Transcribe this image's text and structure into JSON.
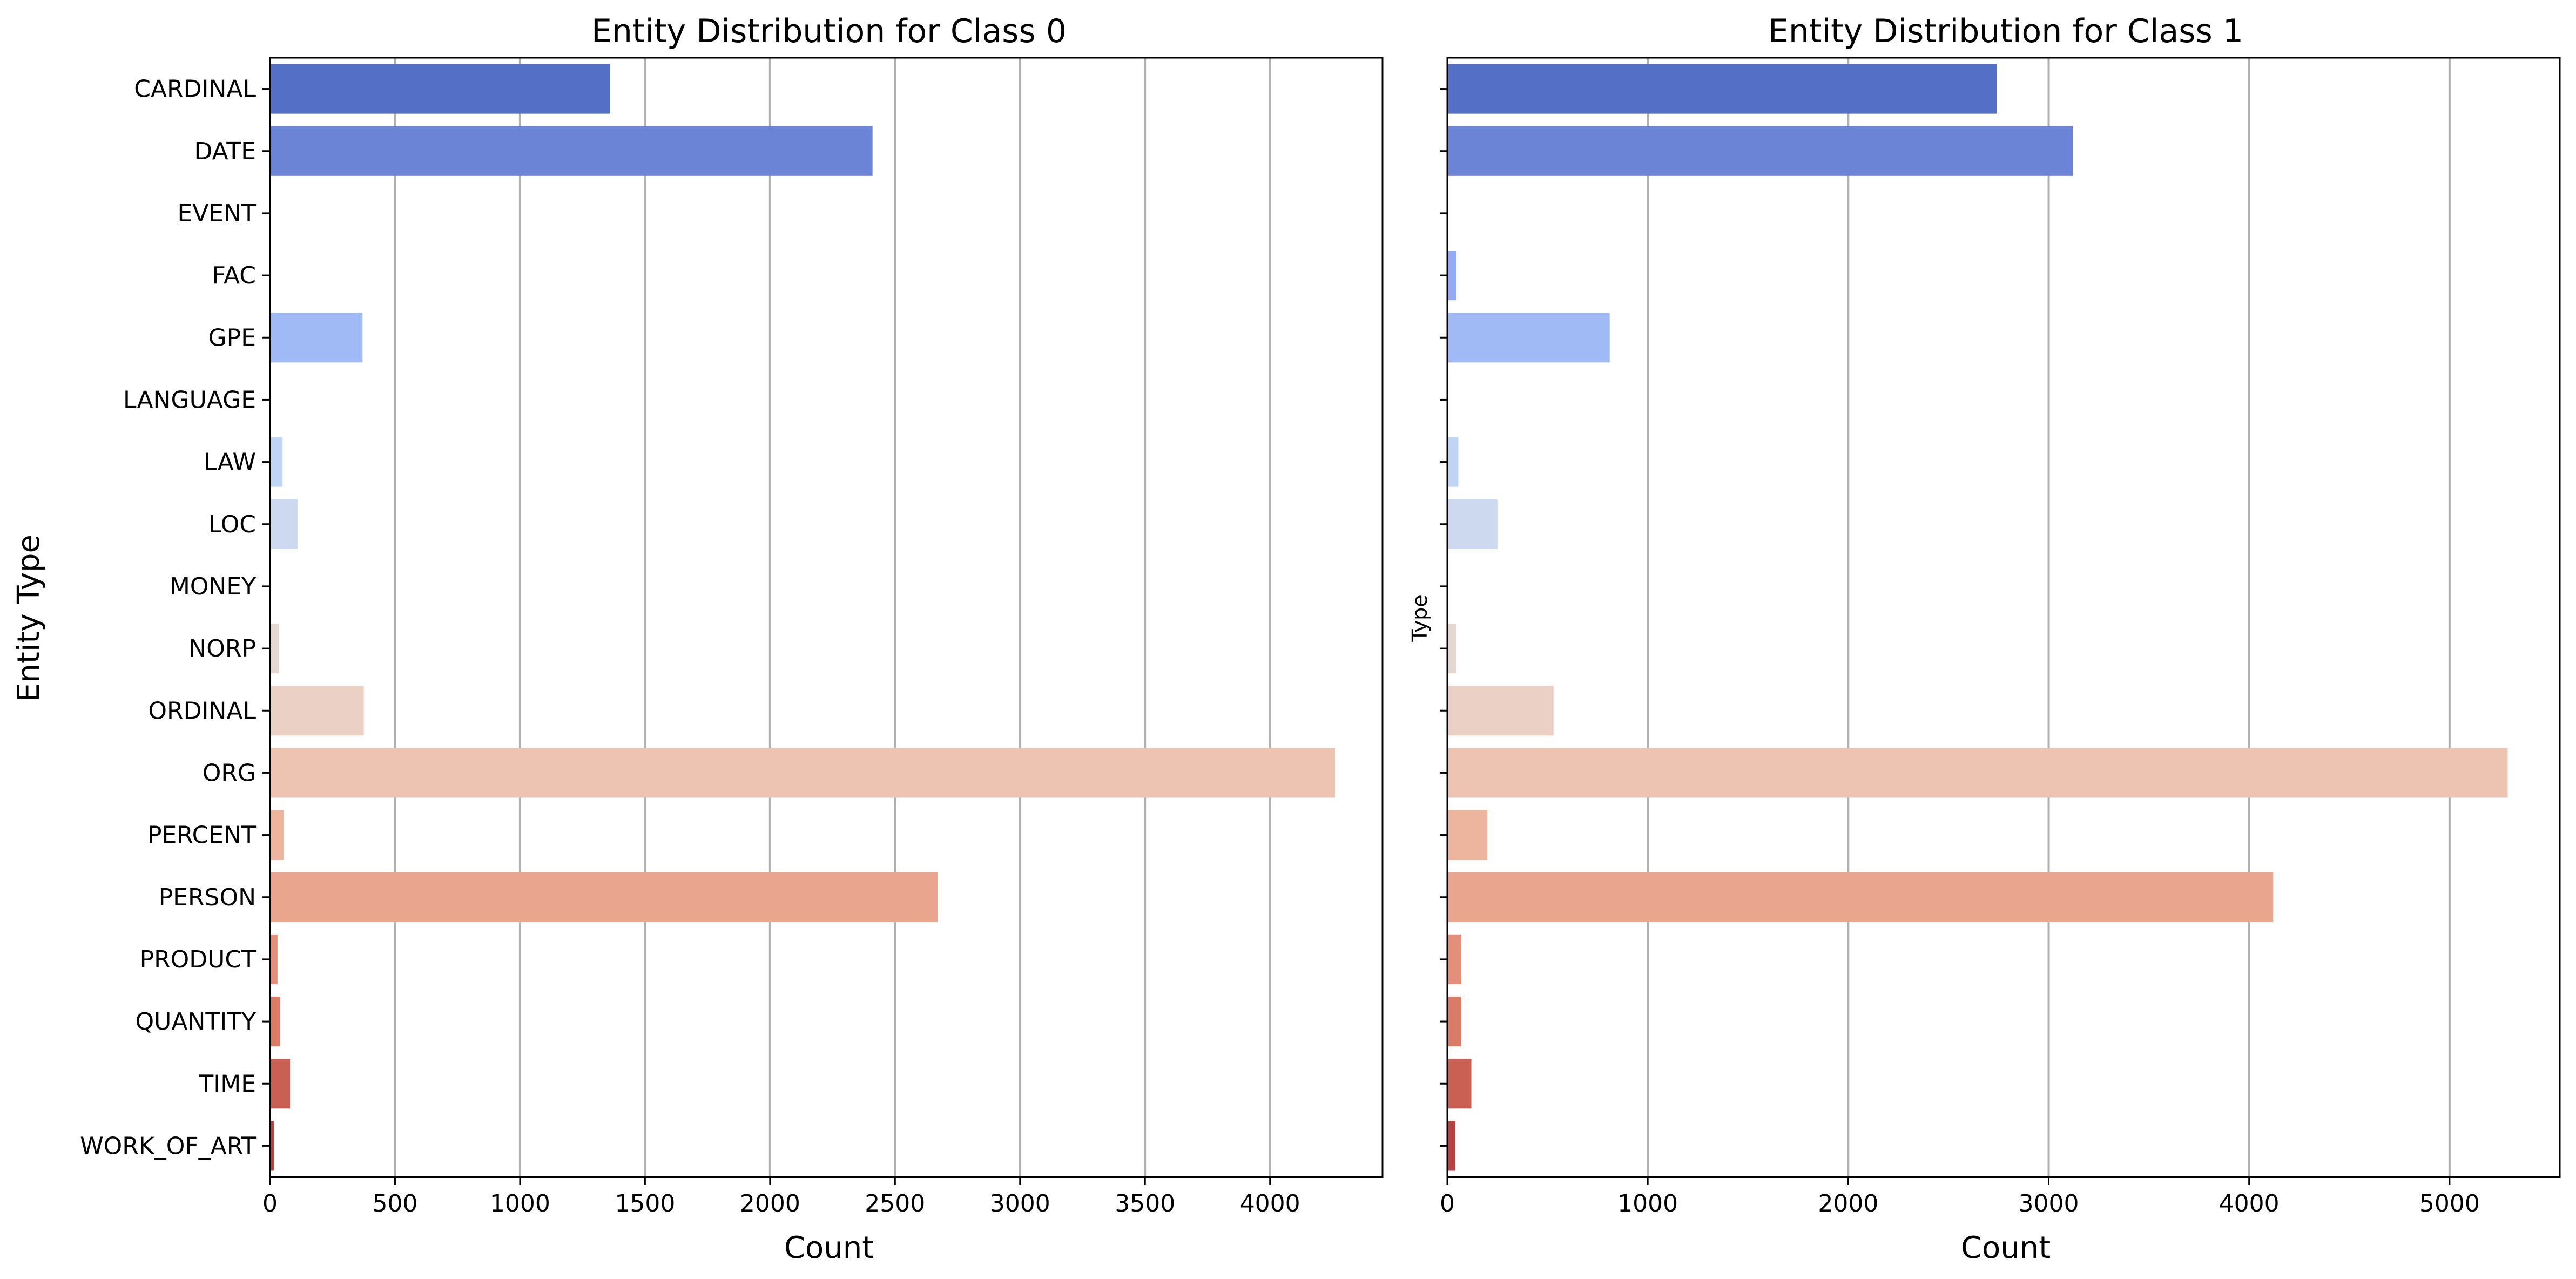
{
  "chart_data": [
    {
      "type": "bar",
      "orientation": "horizontal",
      "title": "Entity Distribution for Class 0",
      "xlabel": "Count",
      "ylabel": "Entity Type",
      "categories": [
        "CARDINAL",
        "DATE",
        "EVENT",
        "FAC",
        "GPE",
        "LANGUAGE",
        "LAW",
        "LOC",
        "MONEY",
        "NORP",
        "ORDINAL",
        "ORG",
        "PERCENT",
        "PERSON",
        "PRODUCT",
        "QUANTITY",
        "TIME",
        "WORK_OF_ART"
      ],
      "values": [
        1360,
        2410,
        0,
        0,
        370,
        0,
        50,
        110,
        0,
        35,
        375,
        4260,
        55,
        2670,
        30,
        40,
        80,
        15
      ],
      "xlim": [
        0,
        4450
      ],
      "xticks": [
        0,
        500,
        1000,
        1500,
        2000,
        2500,
        3000,
        3500,
        4000
      ],
      "xtick_labels": [
        "0",
        "500",
        "1000",
        "1500",
        "2000",
        "2500",
        "3000",
        "3500",
        "4000"
      ],
      "grid": "vertical"
    },
    {
      "type": "bar",
      "orientation": "horizontal",
      "title": "Entity Distribution for Class 1",
      "xlabel": "Count",
      "ylabel": "Type",
      "categories": [
        "CARDINAL",
        "DATE",
        "EVENT",
        "FAC",
        "GPE",
        "LANGUAGE",
        "LAW",
        "LOC",
        "MONEY",
        "NORP",
        "ORDINAL",
        "ORG",
        "PERCENT",
        "PERSON",
        "PRODUCT",
        "QUANTITY",
        "TIME",
        "WORK_OF_ART"
      ],
      "values": [
        2740,
        3120,
        0,
        45,
        810,
        0,
        55,
        250,
        0,
        45,
        530,
        5290,
        200,
        4120,
        70,
        70,
        120,
        40
      ],
      "xlim": [
        0,
        5550
      ],
      "xticks": [
        0,
        1000,
        2000,
        3000,
        4000,
        5000
      ],
      "xtick_labels": [
        "0",
        "1000",
        "2000",
        "3000",
        "4000",
        "5000"
      ],
      "grid": "vertical"
    }
  ],
  "colors": [
    "#5470c6",
    "#6b84d6",
    "#7f98e6",
    "#92abf2",
    "#9fbaf4",
    "#b0c9f4",
    "#c0d4f4",
    "#ccd9ee",
    "#d9dce4",
    "#e5d8d1",
    "#ead0c5",
    "#edc4b1",
    "#edb59d",
    "#e9a58d",
    "#e48f79",
    "#da7b67",
    "#ca6054",
    "#b63f40"
  ]
}
